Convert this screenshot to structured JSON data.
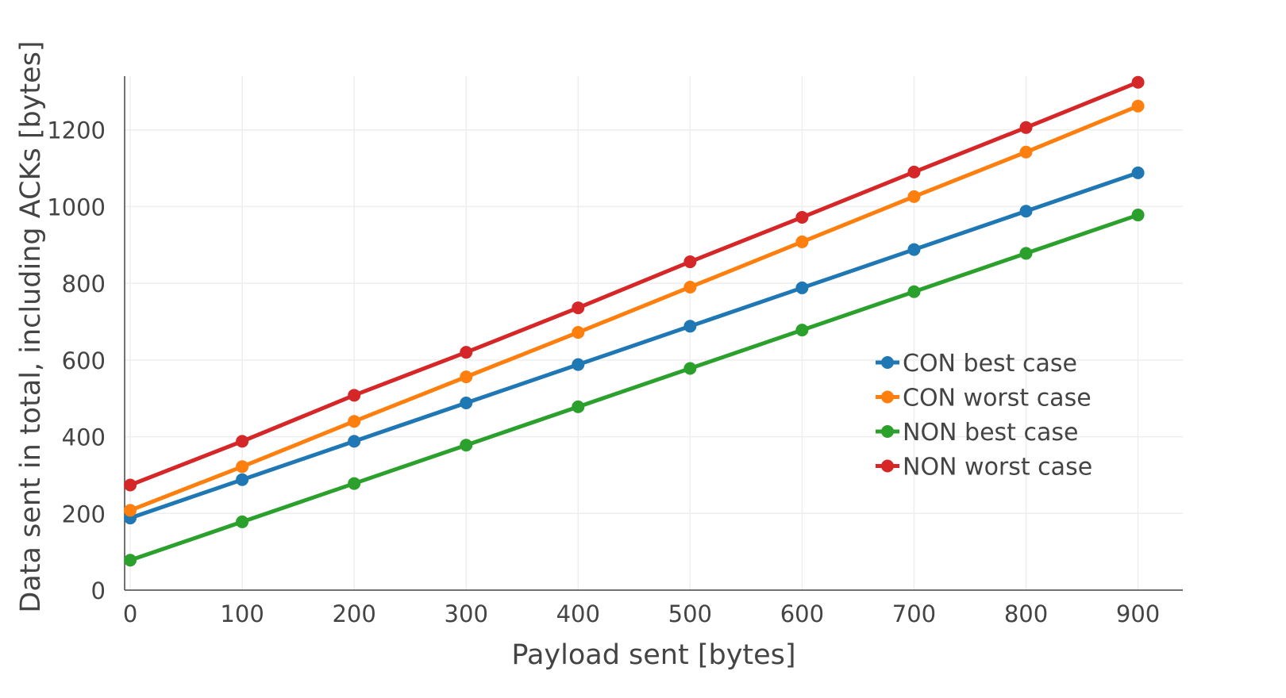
{
  "chart_data": {
    "type": "line",
    "title": "",
    "xlabel": "Payload sent [bytes]",
    "ylabel": "Data sent in total, including ACKs [bytes]",
    "x": [
      0,
      100,
      200,
      300,
      400,
      500,
      600,
      700,
      800,
      900
    ],
    "xticks": [
      0,
      100,
      200,
      300,
      400,
      500,
      600,
      700,
      800,
      900
    ],
    "yticks": [
      0,
      200,
      400,
      600,
      800,
      1000,
      1200
    ],
    "xlim": [
      -5,
      940
    ],
    "ylim": [
      0,
      1340
    ],
    "grid": true,
    "legend_position": "center-right",
    "series": [
      {
        "name": "CON best case",
        "color": "#1f77b4",
        "values": [
          188,
          288,
          388,
          488,
          588,
          688,
          788,
          888,
          988,
          1088
        ]
      },
      {
        "name": "CON worst case",
        "color": "#ff7f0e",
        "values": [
          208,
          322,
          440,
          556,
          672,
          790,
          908,
          1026,
          1142,
          1262
        ]
      },
      {
        "name": "NON best case",
        "color": "#2ca02c",
        "values": [
          78,
          178,
          278,
          378,
          478,
          578,
          678,
          778,
          878,
          978
        ]
      },
      {
        "name": "NON worst case",
        "color": "#d62728",
        "values": [
          274,
          388,
          508,
          620,
          736,
          856,
          972,
          1090,
          1206,
          1324
        ]
      }
    ]
  }
}
